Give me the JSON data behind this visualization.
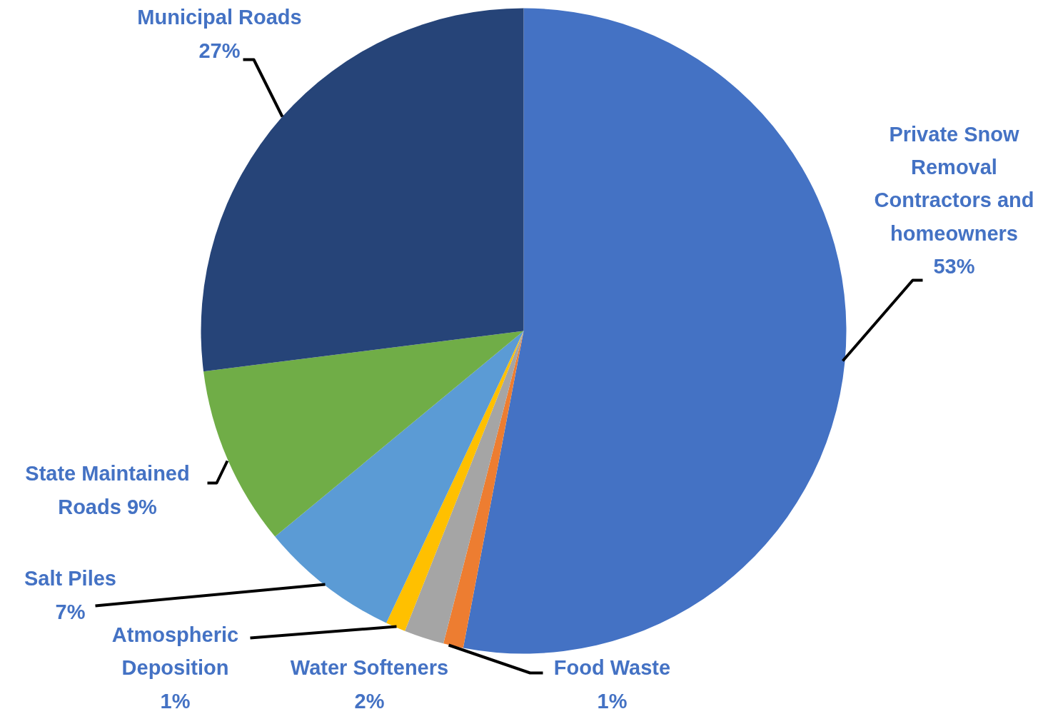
{
  "chart_data": {
    "type": "pie",
    "categories": [
      "Private Snow Removal Contractors and homeowners",
      "Food Waste",
      "Water Softeners",
      "Atmospheric Deposition",
      "Salt Piles",
      "State Maintained Roads",
      "Municipal Roads"
    ],
    "values": [
      53,
      1,
      2,
      1,
      7,
      9,
      27
    ],
    "value_labels": [
      "53%",
      "1%",
      "2%",
      "1%",
      "7%",
      "9%",
      "27%"
    ],
    "colors": [
      "#4472c4",
      "#ed7d31",
      "#a5a5a5",
      "#ffc000",
      "#5b9bd5",
      "#70ad47",
      "#264478"
    ]
  }
}
